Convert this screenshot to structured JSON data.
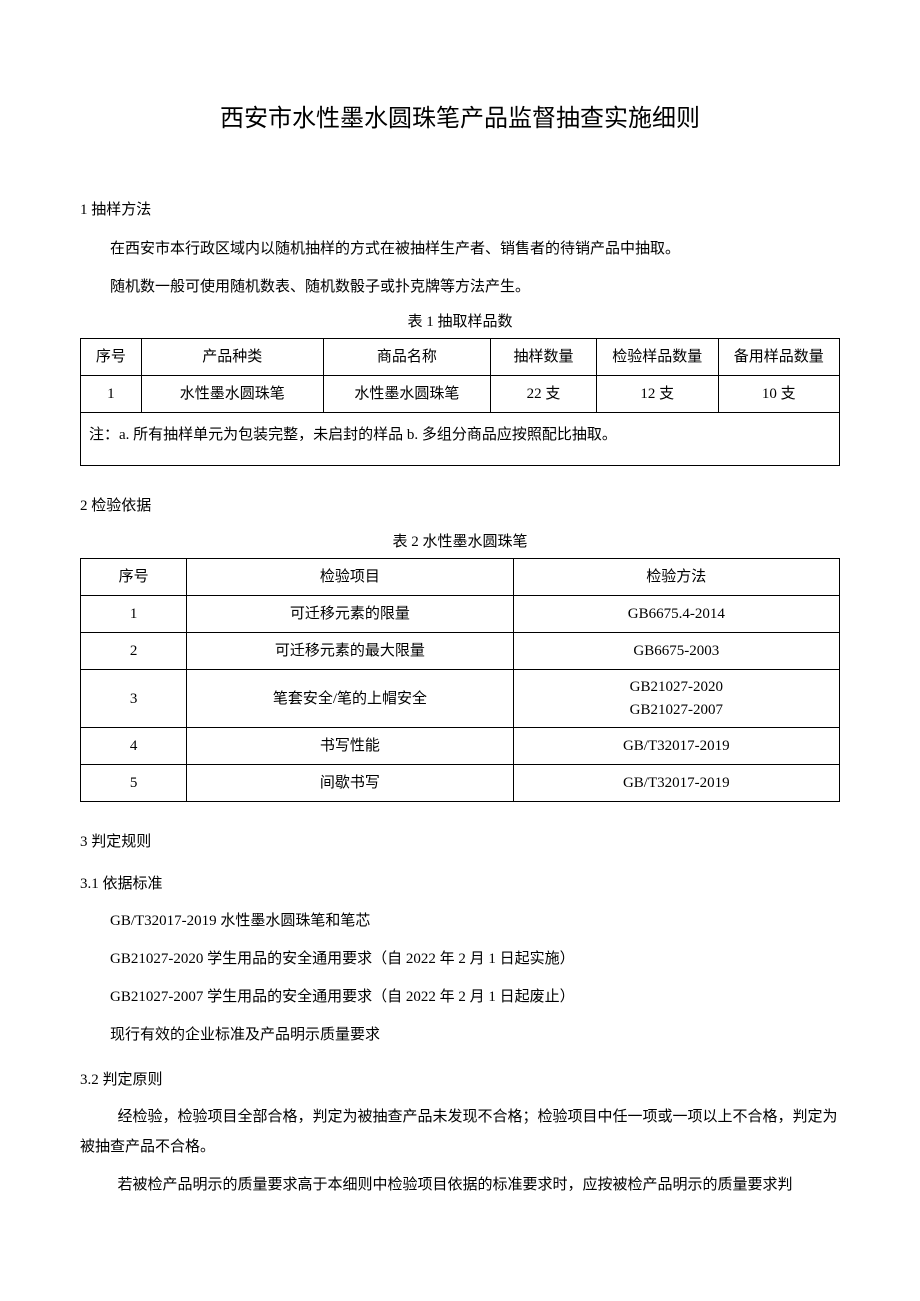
{
  "title": "西安市水性墨水圆珠笔产品监督抽查实施细则",
  "section1": {
    "heading": "1 抽样方法",
    "para1": "在西安市本行政区域内以随机抽样的方式在被抽样生产者、销售者的待销产品中抽取。",
    "para2": "随机数一般可使用随机数表、随机数骰子或扑克牌等方法产生。"
  },
  "table1": {
    "caption": "表 1 抽取样品数",
    "headers": {
      "seq": "序号",
      "category": "产品种类",
      "name": "商品名称",
      "sample_qty": "抽样数量",
      "test_qty": "检验样品数量",
      "spare_qty": "备用样品数量"
    },
    "rows": [
      {
        "seq": "1",
        "category": "水性墨水圆珠笔",
        "name": "水性墨水圆珠笔",
        "sample_qty": "22 支",
        "test_qty": "12 支",
        "spare_qty": "10 支"
      }
    ],
    "note": "注：a. 所有抽样单元为包装完整，未启封的样品 b. 多组分商品应按照配比抽取。"
  },
  "section2": {
    "heading": "2 检验依据"
  },
  "table2": {
    "caption": "表 2 水性墨水圆珠笔",
    "headers": {
      "seq": "序号",
      "item": "检验项目",
      "method": "检验方法"
    },
    "rows": [
      {
        "seq": "1",
        "item": "可迁移元素的限量",
        "method": "GB6675.4-2014"
      },
      {
        "seq": "2",
        "item": "可迁移元素的最大限量",
        "method": "GB6675-2003"
      },
      {
        "seq": "3",
        "item": "笔套安全/笔的上帽安全",
        "method_a": "GB21027-2020",
        "method_b": "GB21027-2007"
      },
      {
        "seq": "4",
        "item": "书写性能",
        "method": "GB/T32017-2019"
      },
      {
        "seq": "5",
        "item": "间歇书写",
        "method": "GB/T32017-2019"
      }
    ]
  },
  "section3": {
    "heading": "3 判定规则",
    "sub1": {
      "heading": "3.1 依据标准",
      "lines": [
        "GB/T32017-2019 水性墨水圆珠笔和笔芯",
        "GB21027-2020 学生用品的安全通用要求（自 2022 年 2 月 1 日起实施）",
        "GB21027-2007 学生用品的安全通用要求（自 2022 年 2 月 1 日起废止）",
        "现行有效的企业标准及产品明示质量要求"
      ]
    },
    "sub2": {
      "heading": "3.2 判定原则",
      "para1": "经检验，检验项目全部合格，判定为被抽查产品未发现不合格；检验项目中任一项或一项以上不合格，判定为被抽查产品不合格。",
      "para2": "若被检产品明示的质量要求高于本细则中检验项目依据的标准要求时，应按被检产品明示的质量要求判"
    }
  }
}
